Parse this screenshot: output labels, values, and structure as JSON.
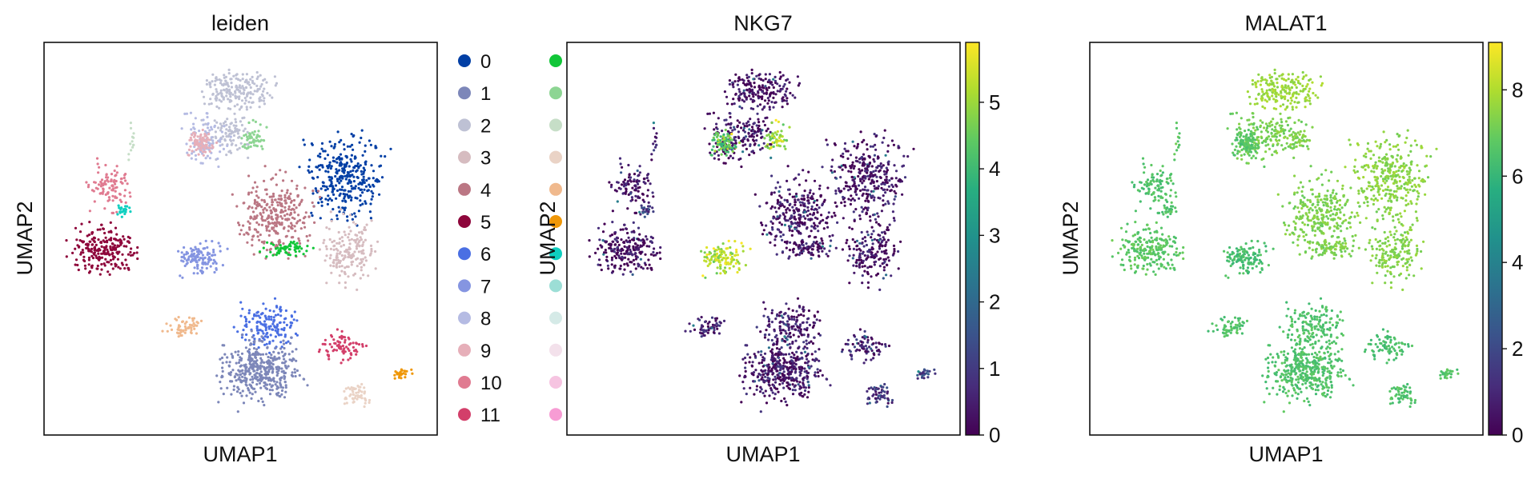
{
  "chart_data": [
    {
      "type": "scatter",
      "title": "leiden",
      "xlabel": "UMAP1",
      "ylabel": "UMAP2",
      "legend": {
        "placement": "right",
        "entries": [
          {
            "label": "0",
            "color": "#023fa5"
          },
          {
            "label": "1",
            "color": "#7d87b9"
          },
          {
            "label": "2",
            "color": "#bec1d4"
          },
          {
            "label": "3",
            "color": "#d6bcc0"
          },
          {
            "label": "4",
            "color": "#bb7784"
          },
          {
            "label": "5",
            "color": "#8e063b"
          },
          {
            "label": "6",
            "color": "#4a6fe3"
          },
          {
            "label": "7",
            "color": "#8595e1"
          },
          {
            "label": "8",
            "color": "#b5bbe3"
          },
          {
            "label": "9",
            "color": "#e6afb9"
          },
          {
            "label": "10",
            "color": "#e07b91"
          },
          {
            "label": "11",
            "color": "#d33f6a"
          },
          {
            "label": "",
            "color": "#11c638"
          },
          {
            "label": "",
            "color": "#8dd593"
          },
          {
            "label": "",
            "color": "#c6dec7"
          },
          {
            "label": "",
            "color": "#ead3c6"
          },
          {
            "label": "",
            "color": "#f0b98d"
          },
          {
            "label": "",
            "color": "#ef9708"
          },
          {
            "label": "",
            "color": "#0fcfc0"
          },
          {
            "label": "",
            "color": "#9cded6"
          },
          {
            "label": "",
            "color": "#d5eae7"
          },
          {
            "label": "",
            "color": "#f3e1eb"
          },
          {
            "label": "",
            "color": "#f6c4e1"
          },
          {
            "label": "",
            "color": "#f79cd4"
          }
        ]
      }
    },
    {
      "type": "scatter",
      "title": "NKG7",
      "xlabel": "UMAP1",
      "ylabel": "UMAP2",
      "colorbar": {
        "cmap": "viridis",
        "range": [
          0,
          5.9
        ],
        "ticks": [
          "0",
          "1",
          "2",
          "3",
          "4",
          "5"
        ]
      }
    },
    {
      "type": "scatter",
      "title": "MALAT1",
      "xlabel": "UMAP1",
      "ylabel": "UMAP2",
      "colorbar": {
        "cmap": "viridis",
        "range": [
          0,
          9.1
        ],
        "ticks": [
          "0",
          "2",
          "4",
          "6",
          "8"
        ]
      }
    }
  ]
}
